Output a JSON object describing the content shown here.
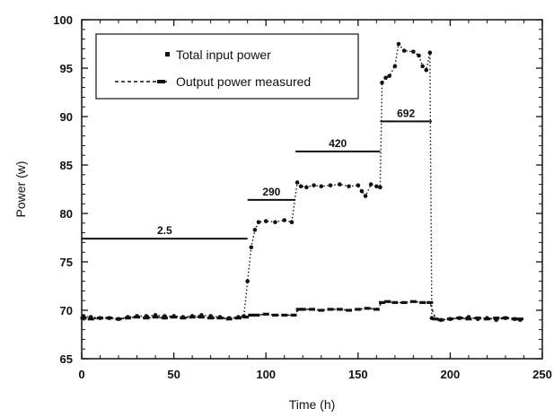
{
  "chart_data": {
    "type": "scatter",
    "xlabel": "Time (h)",
    "ylabel": "Power (w)",
    "xlim": [
      0,
      250
    ],
    "ylim": [
      65,
      100
    ],
    "xticks": [
      0,
      50,
      100,
      150,
      200,
      250
    ],
    "yticks": [
      65,
      70,
      75,
      80,
      85,
      90,
      95,
      100
    ],
    "grid": false,
    "legend_position": "top-left",
    "series": [
      {
        "name": "Total input power",
        "style": "dotted-line-with-dots",
        "x": [
          1,
          5,
          10,
          15,
          20,
          25,
          30,
          35,
          40,
          45,
          50,
          55,
          60,
          65,
          70,
          75,
          80,
          85,
          88,
          90,
          92,
          94,
          96,
          100,
          105,
          110,
          114,
          117,
          119,
          122,
          126,
          130,
          135,
          140,
          145,
          150,
          152,
          154,
          157,
          160,
          162,
          163,
          165,
          167,
          170,
          172,
          175,
          180,
          183,
          185,
          187,
          189,
          190,
          195,
          200,
          205,
          210,
          215,
          220,
          225,
          230,
          235,
          238
        ],
        "y": [
          69.4,
          69.3,
          69.2,
          69.2,
          69.1,
          69.3,
          69.4,
          69.4,
          69.5,
          69.4,
          69.4,
          69.3,
          69.4,
          69.5,
          69.4,
          69.3,
          69.2,
          69.3,
          69.4,
          73,
          76.5,
          78.3,
          79.1,
          79.2,
          79.1,
          79.3,
          79.1,
          83.2,
          82.8,
          82.7,
          82.9,
          82.8,
          82.9,
          83.0,
          82.8,
          82.9,
          82.3,
          81.8,
          83.0,
          82.8,
          82.7,
          93.5,
          94.0,
          94.2,
          95.2,
          97.5,
          96.8,
          96.7,
          96.3,
          95.2,
          94.8,
          96.6,
          69.2,
          69.0,
          69.1,
          69.2,
          69.3,
          69.1,
          69.2,
          69.0,
          69.2,
          69.1,
          69.0
        ]
      },
      {
        "name": "Output power measured",
        "style": "dashed-line-with-dashes",
        "x": [
          1,
          5,
          10,
          15,
          20,
          25,
          30,
          35,
          40,
          45,
          50,
          55,
          60,
          65,
          70,
          75,
          80,
          85,
          89,
          92,
          95,
          100,
          105,
          110,
          115,
          118,
          120,
          125,
          130,
          135,
          140,
          145,
          150,
          155,
          160,
          163,
          166,
          170,
          175,
          180,
          185,
          189,
          192,
          195,
          200,
          205,
          210,
          215,
          220,
          225,
          230,
          235,
          238
        ],
        "y": [
          69.2,
          69.1,
          69.2,
          69.2,
          69.1,
          69.2,
          69.3,
          69.2,
          69.3,
          69.2,
          69.3,
          69.2,
          69.3,
          69.3,
          69.2,
          69.2,
          69.1,
          69.2,
          69.3,
          69.5,
          69.5,
          69.6,
          69.5,
          69.5,
          69.5,
          70.1,
          70.1,
          70.1,
          70.0,
          70.1,
          70.1,
          70.0,
          70.1,
          70.2,
          70.1,
          70.8,
          70.9,
          70.8,
          70.8,
          70.9,
          70.8,
          70.8,
          69.1,
          69.0,
          69.1,
          69.2,
          69.1,
          69.2,
          69.1,
          69.2,
          69.2,
          69.1,
          69.1
        ]
      }
    ],
    "annotations": [
      {
        "text": "2.5",
        "x1": 0,
        "x2": 90,
        "y": 77.4
      },
      {
        "text": "290",
        "x1": 90,
        "x2": 116,
        "y": 81.4
      },
      {
        "text": "420",
        "x1": 116,
        "x2": 162,
        "y": 86.4
      },
      {
        "text": "692",
        "x1": 162,
        "x2": 190,
        "y": 89.5
      }
    ]
  }
}
